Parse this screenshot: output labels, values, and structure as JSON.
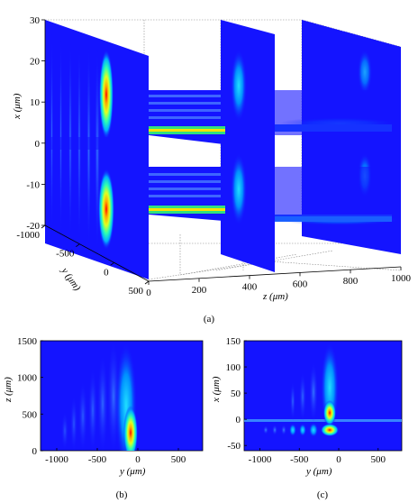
{
  "figure": {
    "panel_a_caption": "(a)",
    "panel_b_caption": "(b)",
    "panel_c_caption": "(c)"
  },
  "chart_data": [
    {
      "panel": "(a)",
      "type": "heatmap",
      "xlabel": "z (μm)",
      "ylabel": "y (μm)",
      "zlabel": "x (μm)",
      "x_ticks": [
        "0",
        "200",
        "400",
        "600",
        "800",
        "1000"
      ],
      "y_ticks": [
        "-1000",
        "-500",
        "0",
        "500"
      ],
      "z_ticks": [
        "30",
        "20",
        "10",
        "0",
        "-10",
        "-20"
      ],
      "xlim": [
        0,
        1000
      ],
      "ylim": [
        -1000,
        500
      ],
      "zlim": [
        -20,
        30
      ],
      "grid": true,
      "planes_z_um": [
        0,
        500,
        1000
      ],
      "beam_centers_x_um": [
        2,
        -17
      ],
      "peak_y_um": -50
    },
    {
      "panel": "(b)",
      "type": "heatmap",
      "xlabel": "y (μm)",
      "ylabel": "z (μm)",
      "x_ticks": [
        "-1000",
        "-500",
        "0",
        "500"
      ],
      "y_ticks": [
        "0",
        "500",
        "1000",
        "1500"
      ],
      "xlim": [
        -1200,
        800
      ],
      "ylim": [
        0,
        1500
      ],
      "peak_y_um": -50,
      "peak_z_um": 0
    },
    {
      "panel": "(c)",
      "type": "heatmap",
      "xlabel": "y (μm)",
      "ylabel": "x (μm)",
      "x_ticks": [
        "-1000",
        "-500",
        "0",
        "500"
      ],
      "y_ticks": [
        "-50",
        "0",
        "50",
        "100",
        "150"
      ],
      "xlim": [
        -1200,
        800
      ],
      "ylim": [
        -60,
        150
      ],
      "beam_centers_x_um": [
        0,
        -20
      ],
      "peak_y_um": -100
    }
  ]
}
